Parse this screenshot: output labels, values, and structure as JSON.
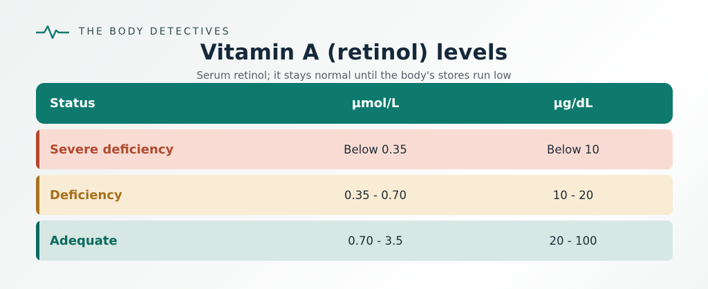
{
  "brand": {
    "name": "THE BODY DETECTIVES",
    "icon": "pulse-line-icon",
    "icon_color": "#0e7a6e"
  },
  "title": "Vitamin A (retinol) levels",
  "subtitle": "Serum retinol; it stays normal until the body's stores run low",
  "table": {
    "header": {
      "status": "Status",
      "umol": "µmol/L",
      "ugdl": "µg/dL",
      "background": "#0e7a6e"
    },
    "rows": [
      {
        "status": "Severe deficiency",
        "umol": "Below 0.35",
        "ugdl": "Below 10",
        "accent": "#b5462e",
        "label_color": "#b24a2e",
        "background": "#f8dcd4"
      },
      {
        "status": "Deficiency",
        "umol": "0.35 - 0.70",
        "ugdl": "10 - 20",
        "accent": "#a8731e",
        "label_color": "#a86f1c",
        "background": "#f8ecd4"
      },
      {
        "status": "Adequate",
        "umol": "0.70 - 3.5",
        "ugdl": "20 - 100",
        "accent": "#0b6a5c",
        "label_color": "#0b6a5c",
        "background": "#d6e7e4"
      }
    ]
  }
}
